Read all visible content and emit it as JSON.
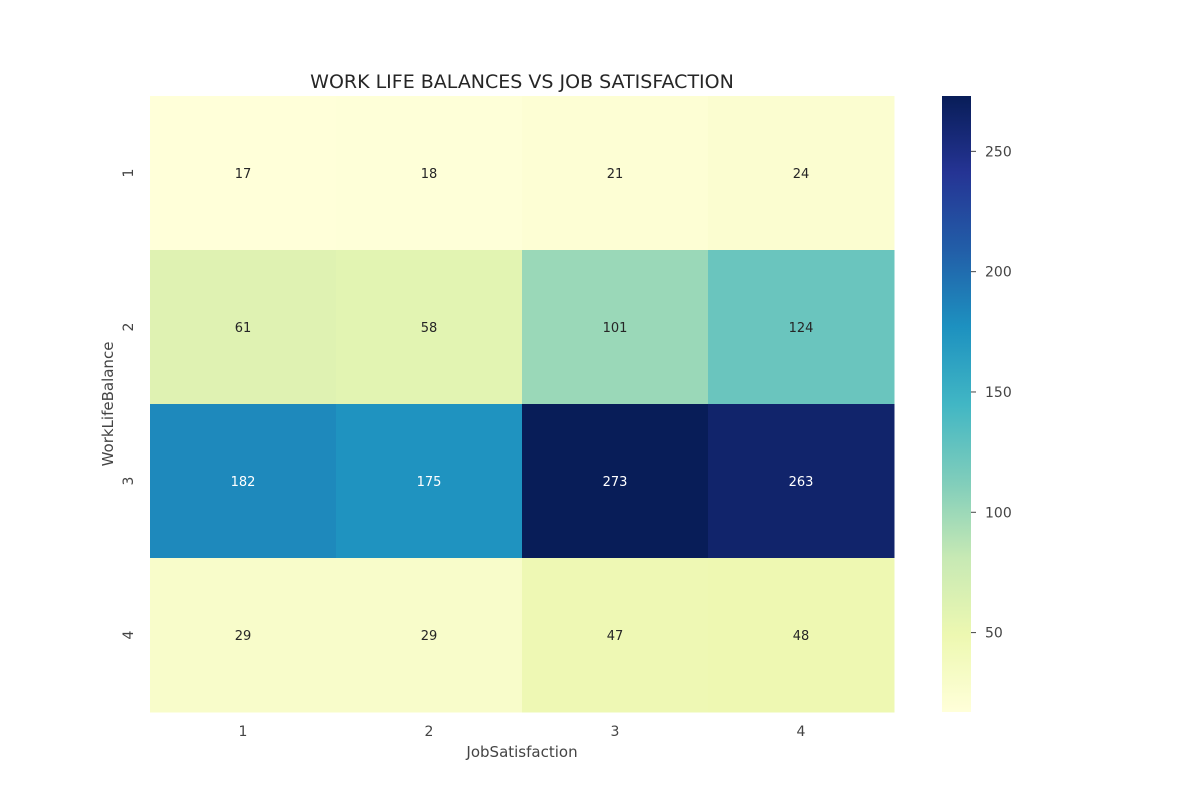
{
  "chart_data": {
    "type": "heatmap",
    "title": "WORK LIFE BALANCES VS JOB SATISFACTION",
    "xlabel": "JobSatisfaction",
    "ylabel": "WorkLifeBalance",
    "x_categories": [
      "1",
      "2",
      "3",
      "4"
    ],
    "y_categories": [
      "1",
      "2",
      "3",
      "4"
    ],
    "values": [
      [
        17,
        18,
        21,
        24
      ],
      [
        61,
        58,
        101,
        124
      ],
      [
        182,
        175,
        273,
        263
      ],
      [
        29,
        29,
        47,
        48
      ]
    ],
    "colormap": "YlGnBu",
    "color_range": [
      17,
      273
    ],
    "colorbar_ticks": [
      50,
      100,
      150,
      200,
      250
    ],
    "annotated": true
  }
}
